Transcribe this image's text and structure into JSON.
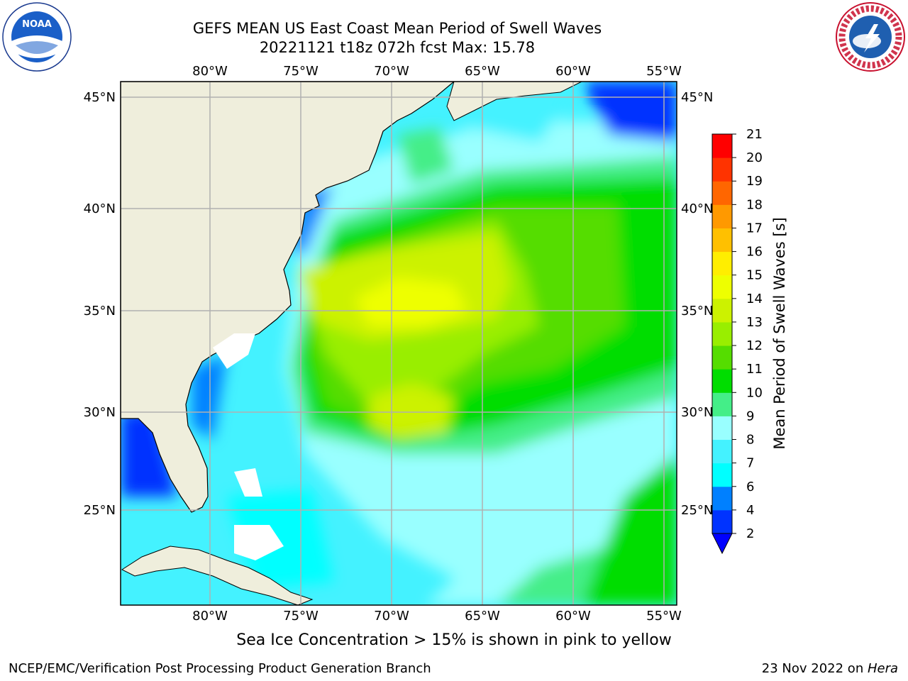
{
  "title": {
    "line1": "GEFS MEAN US East Coast Mean Period of Swell Waves",
    "line2": "20221121 t18z 072h fcst   Max: 15.78"
  },
  "map": {
    "lon_labels": [
      "80°W",
      "75°W",
      "70°W",
      "65°W",
      "60°W",
      "55°W"
    ],
    "lat_labels": [
      "45°N",
      "40°N",
      "35°N",
      "30°N",
      "25°N"
    ],
    "lon_range": [
      -85,
      -55
    ],
    "lat_range": [
      20.5,
      46
    ],
    "land_color": "#efeedc",
    "grid_color": "#b0b0b0"
  },
  "colorbar": {
    "label": "Mean Period of Swell Waves [s]",
    "ticks": [
      "2",
      "4",
      "6",
      "7",
      "8",
      "9",
      "10",
      "11",
      "12",
      "13",
      "14",
      "15",
      "16",
      "17",
      "18",
      "19",
      "20",
      "21"
    ],
    "colors": [
      "#0033ff",
      "#0080ff",
      "#00ffff",
      "#44f2ff",
      "#99ffff",
      "#44ee88",
      "#00dd00",
      "#55dd00",
      "#99ee00",
      "#ccf200",
      "#eeff00",
      "#ffee00",
      "#ffc000",
      "#ff9900",
      "#ff6600",
      "#ff3300",
      "#ff0000"
    ],
    "under_color": "#0000ff"
  },
  "note": "Sea Ice Concentration > 15% is shown in pink to yellow",
  "footer": {
    "left": "NCEP/EMC/Verification Post Processing Product Generation Branch",
    "right_prefix": "23 Nov 2022 on ",
    "right_machine": "Hera"
  },
  "logos": {
    "noaa_text": "NOAA",
    "nws_text": "NATIONAL WEATHER SERVICE"
  }
}
